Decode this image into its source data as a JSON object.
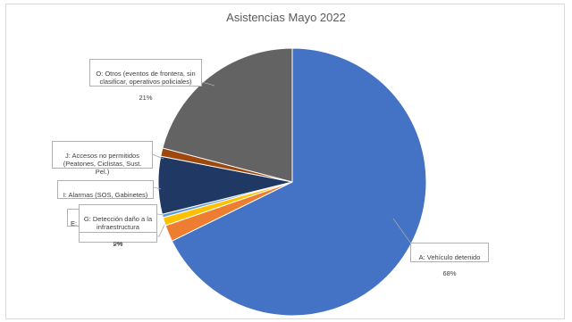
{
  "chart_data": {
    "type": "pie",
    "title": "Asistencias Mayo 2022",
    "slices": [
      {
        "label": "A: Vehículo detenido",
        "value": 68,
        "pct_label": "68%",
        "color": "#4472c4"
      },
      {
        "label": "",
        "value": 2,
        "pct_label": "2%",
        "color": "#ed7d31"
      },
      {
        "label": "E:",
        "value": 1,
        "pct_label": "",
        "color": "#ffc000"
      },
      {
        "label": "G: Detección daño a la infraestructura",
        "value": 0.4,
        "pct_label": "0%",
        "color": "#5b9bd5"
      },
      {
        "label": "I: Alarmas (SOS, Gabinetes)",
        "value": 7,
        "pct_label": "7%",
        "color": "#203864"
      },
      {
        "label": "J: Accesos no permitidos (Peatones, Ciclistas, Sust. Pel.)",
        "value": 1,
        "pct_label": "1%",
        "color": "#9e480e"
      },
      {
        "label": "O: Otros (eventos de frontera, sin clasificar, operativos policiales)",
        "value": 21,
        "pct_label": "21%",
        "color": "#636363"
      }
    ]
  },
  "labels": {
    "a_name": "A: Vehículo detenido",
    "a_pct": "68%",
    "o_name": "O: Otros (eventos de frontera, sin clasificar, operativos policiales)",
    "o_pct": "21%",
    "j_name": "J: Accesos no permitidos (Peatones, Ciclistas, Sust. Pel.)",
    "j_pct": "1%",
    "i_name": "I: Alarmas (SOS, Gabinetes)",
    "i_pct": "7%",
    "g_name": "G: Detección daño a la infraestructura",
    "g_pct": "0%",
    "e_name": "E:",
    "orange_pct": "2%"
  }
}
